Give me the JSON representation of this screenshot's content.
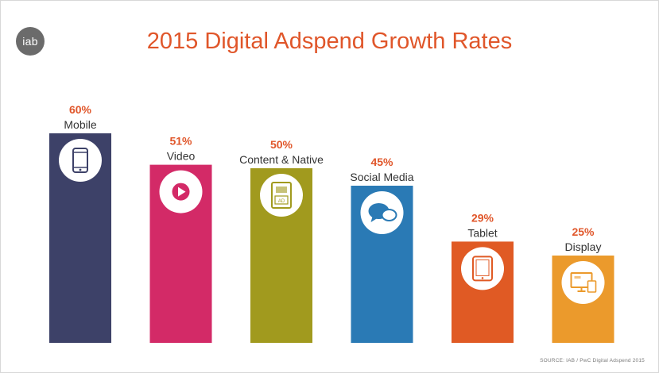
{
  "logo": {
    "text": "iab"
  },
  "source": "SOURCE: IAB / PwC Digital Adspend 2015",
  "chart_data": {
    "type": "bar",
    "title": "2015 Digital Adspend Growth Rates",
    "xlabel": "",
    "ylabel": "",
    "ylim": [
      0,
      60
    ],
    "grid": false,
    "legend": "none",
    "value_suffix": "%",
    "categories": [
      "Mobile",
      "Video",
      "Content & Native",
      "Social Media",
      "Tablet",
      "Display"
    ],
    "values": [
      60,
      51,
      50,
      45,
      29,
      25
    ],
    "value_labels": [
      "60%",
      "51%",
      "50%",
      "45%",
      "29%",
      "25%"
    ],
    "colors": [
      "#3d4168",
      "#d32a67",
      "#a19a1e",
      "#2a7ab5",
      "#e05a24",
      "#eb9a2c"
    ],
    "icons": [
      "smartphone-icon",
      "play-icon",
      "content-ad-icon",
      "chat-bubbles-icon",
      "tablet-icon",
      "display-devices-icon"
    ]
  }
}
